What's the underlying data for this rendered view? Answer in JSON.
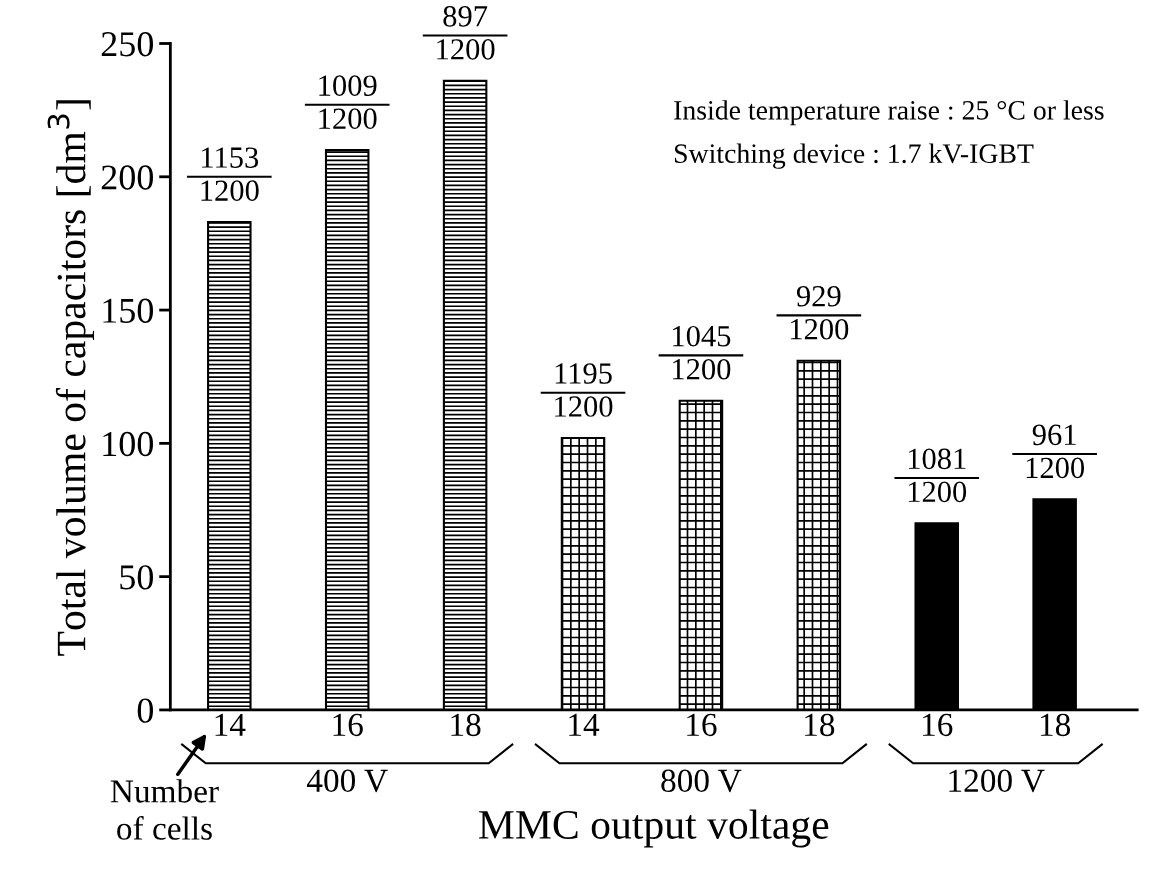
{
  "chart_data": {
    "type": "bar",
    "ylabel": "Total volume of capacitors [dm$^{3}$]",
    "xlabel": "MMC output voltage",
    "categories": [
      "14",
      "16",
      "18",
      "14",
      "16",
      "18",
      "16",
      "18"
    ],
    "values": [
      183,
      210,
      236,
      102,
      116,
      131,
      70,
      79
    ],
    "colors": [
      "#000000",
      "#000000",
      "#000000",
      "#000000",
      "#000000",
      "#000000",
      "#000000",
      "#000000"
    ],
    "ylim": [
      0,
      250
    ],
    "yticks": [
      0,
      50,
      100,
      150,
      200,
      250
    ],
    "grid": false,
    "annotations": [
      "Inside temperature raise : 25 °C or less",
      "Switching device : 1.7 kV-IGBT",
      "400 V",
      "800 V",
      "1200 V",
      "Number\nof cells",
      "1153\n1200",
      "1009\n1200",
      "897\n1200",
      "1195\n1200",
      "1045\n1200",
      "929\n1200",
      "1081\n1200",
      "961\n1200"
    ]
  }
}
